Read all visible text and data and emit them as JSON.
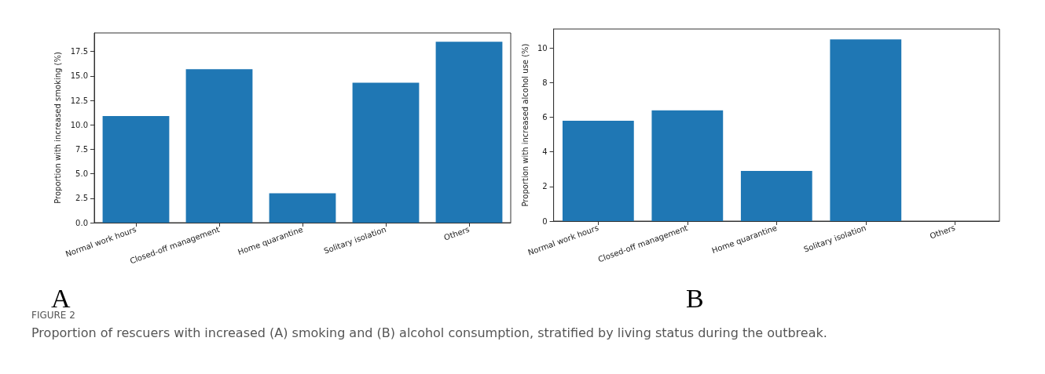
{
  "chart_data": [
    {
      "type": "bar",
      "ylabel": "Proportion with increased smoking (%)",
      "categories": [
        "Normal work hours",
        "Closed-off management",
        "Home quarantine",
        "Solitary isolation",
        "Others"
      ],
      "values": [
        10.9,
        15.7,
        3.0,
        14.3,
        18.5
      ],
      "color": "#1f77b4",
      "ylim": [
        0,
        19.4
      ],
      "yticks": [
        {
          "value": 0,
          "label": "0.0"
        },
        {
          "value": 2.5,
          "label": "2.5"
        },
        {
          "value": 5,
          "label": "5.0"
        },
        {
          "value": 7.5,
          "label": "7.5"
        },
        {
          "value": 10,
          "label": "10.0"
        },
        {
          "value": 12.5,
          "label": "12.5"
        },
        {
          "value": 15,
          "label": "15.0"
        },
        {
          "value": 17.5,
          "label": "17.5"
        }
      ],
      "grid": false,
      "annotations": [
        "A"
      ]
    },
    {
      "type": "bar",
      "ylabel": "Proportion with increased alcohol use (%)",
      "categories": [
        "Normal work hours",
        "Closed-off management",
        "Home quarantine",
        "Solitary isolation",
        "Others"
      ],
      "values": [
        5.8,
        6.4,
        2.9,
        10.5,
        0
      ],
      "color": "#1f77b4",
      "ylim": [
        0,
        11.1
      ],
      "yticks": [
        0,
        2,
        4,
        6,
        8,
        10
      ],
      "grid": false,
      "annotations": [
        "B",
        "FIGURE 2",
        "Proportion of rescuers with increased (A) smoking and (B) alcohol consumption, stratified by living status during the outbreak."
      ]
    }
  ]
}
